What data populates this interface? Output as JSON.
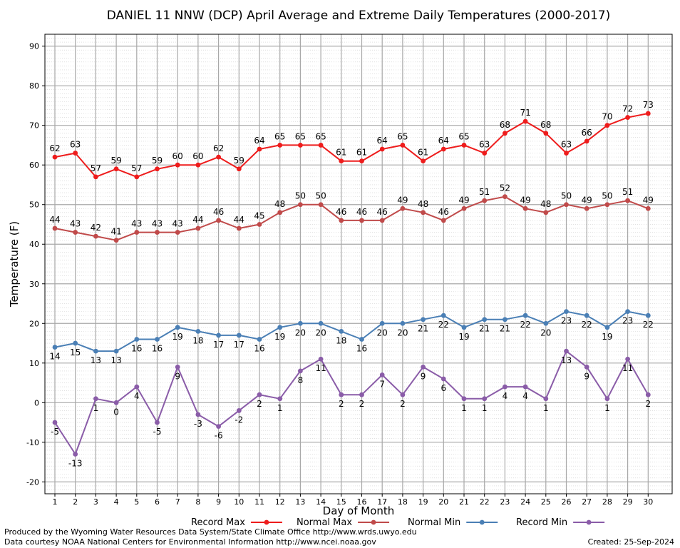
{
  "chart_data": {
    "type": "line",
    "title": "DANIEL 11 NNW (DCP) April Average and Extreme Daily Temperatures (2000-2017)",
    "xlabel": "Day of Month",
    "ylabel": "Temperature (F)",
    "xlim": [
      1,
      30
    ],
    "ylim": [
      -23,
      93
    ],
    "y_ticks": [
      -20,
      -10,
      0,
      10,
      20,
      30,
      40,
      50,
      60,
      70,
      80,
      90
    ],
    "grid": true,
    "legend_position": "bottom",
    "x": [
      1,
      2,
      3,
      4,
      5,
      6,
      7,
      8,
      9,
      10,
      11,
      12,
      13,
      14,
      15,
      16,
      17,
      18,
      19,
      20,
      21,
      22,
      23,
      24,
      25,
      26,
      27,
      28,
      29,
      30
    ],
    "series": [
      {
        "name": "Record Max",
        "color": "#ee1c1c",
        "label_pos": "above",
        "values": [
          62,
          63,
          57,
          59,
          57,
          59,
          60,
          60,
          62,
          59,
          64,
          65,
          65,
          65,
          61,
          61,
          64,
          65,
          61,
          64,
          65,
          63,
          68,
          71,
          68,
          63,
          66,
          70,
          72,
          73
        ]
      },
      {
        "name": "Normal Max",
        "color": "#c04a4a",
        "label_pos": "above",
        "values": [
          44,
          43,
          42,
          41,
          43,
          43,
          43,
          44,
          46,
          44,
          45,
          48,
          50,
          50,
          46,
          46,
          46,
          49,
          48,
          46,
          49,
          51,
          52,
          49,
          48,
          50,
          49,
          50,
          51,
          49
        ]
      },
      {
        "name": "Normal Min",
        "color": "#4a7fb5",
        "label_pos": "below",
        "values": [
          14,
          15,
          13,
          13,
          16,
          16,
          19,
          18,
          17,
          17,
          16,
          19,
          20,
          20,
          18,
          16,
          20,
          20,
          21,
          22,
          19,
          21,
          21,
          22,
          20,
          23,
          22,
          19,
          23,
          22
        ]
      },
      {
        "name": "Record Min",
        "color": "#8a5ca8",
        "label_pos": "below",
        "values": [
          -5,
          -13,
          1,
          0,
          4,
          -5,
          9,
          -3,
          -6,
          -2,
          2,
          1,
          8,
          11,
          2,
          2,
          7,
          2,
          9,
          6,
          1,
          1,
          4,
          4,
          1,
          13,
          9,
          1,
          11,
          2
        ]
      }
    ]
  },
  "footer": {
    "line1": "Produced by the Wyoming Water Resources Data System/State Climate Office http://www.wrds.uwyo.edu",
    "line2": "Data courtesy NOAA National Centers for Environmental Information http://www.ncei.noaa.gov",
    "created": "Created:  25-Sep-2024"
  }
}
